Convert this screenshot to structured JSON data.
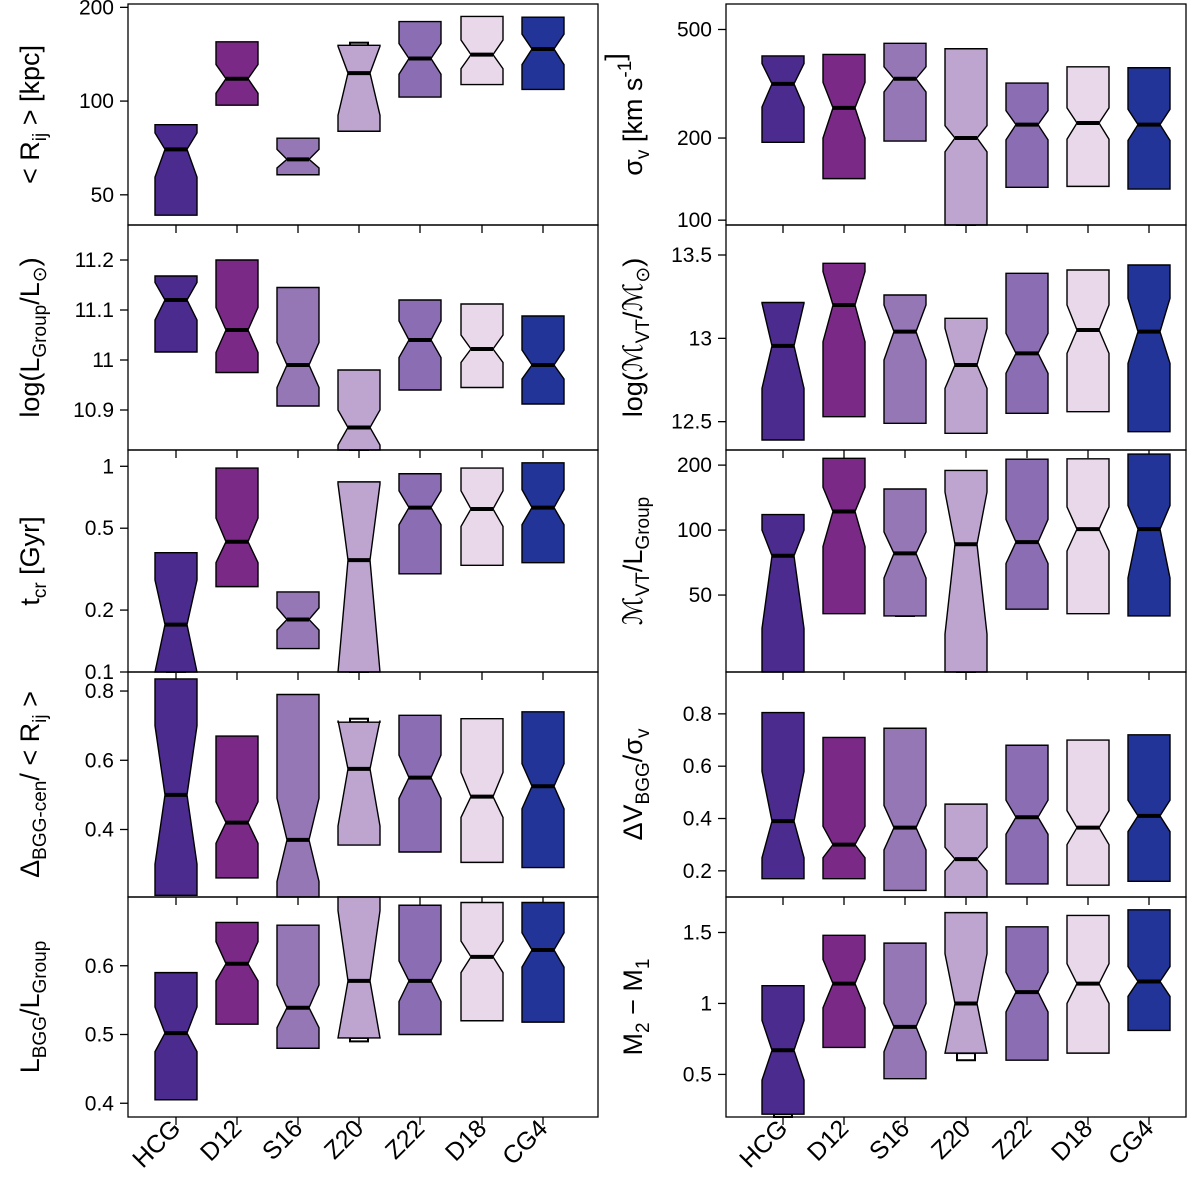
{
  "categories": [
    "HCG",
    "D12",
    "S16",
    "Z20",
    "Z22",
    "D18",
    "CG4"
  ],
  "colors": [
    "#4b2b8e",
    "#7a2a86",
    "#9677b6",
    "#bda5cf",
    "#8b6db3",
    "#e9d8ea",
    "#223497"
  ],
  "chart_data": [
    {
      "type": "notched-box",
      "panel": "left-1",
      "ylabel_parts": [
        "< R",
        "ij",
        " >  [kpc]"
      ],
      "scale": "log",
      "ylim": [
        40,
        205
      ],
      "ticks": [
        50,
        100,
        200
      ],
      "tick_labels": [
        "50",
        "100",
        "200"
      ],
      "boxes": [
        {
          "q1": 43,
          "med": 70,
          "q3": 84,
          "nlo": 57,
          "nhi": 79,
          "whisk": null
        },
        {
          "q1": 97,
          "med": 118,
          "q3": 155,
          "nlo": 106,
          "nhi": 131,
          "whisk": null
        },
        {
          "q1": 58,
          "med": 65,
          "q3": 76,
          "nlo": 61,
          "nhi": 70,
          "whisk": null
        },
        {
          "q1": 80,
          "med": 123,
          "q3": 151,
          "nlo": 90,
          "nhi": 150,
          "whisk": [
            151,
            154
          ]
        },
        {
          "q1": 103,
          "med": 137,
          "q3": 180,
          "nlo": 122,
          "nhi": 153,
          "whisk": null
        },
        {
          "q1": 113,
          "med": 141,
          "q3": 187,
          "nlo": 127,
          "nhi": 157,
          "whisk": null
        },
        {
          "q1": 109,
          "med": 147,
          "q3": 186,
          "nlo": 131,
          "nhi": 164,
          "whisk": null
        }
      ]
    },
    {
      "type": "notched-box",
      "panel": "left-2",
      "ylabel_parts": [
        "log(L",
        "Group",
        "/L",
        "⊙",
        ")"
      ],
      "scale": "linear",
      "ylim": [
        10.82,
        11.27
      ],
      "ticks": [
        10.9,
        11.0,
        11.1,
        11.2
      ],
      "tick_labels": [
        "10.9",
        "11",
        "11.1",
        "11.2"
      ],
      "boxes": [
        {
          "q1": 11.016,
          "med": 11.12,
          "q3": 11.168,
          "nlo": 11.08,
          "nhi": 11.155,
          "whisk": null
        },
        {
          "q1": 10.975,
          "med": 11.06,
          "q3": 11.2,
          "nlo": 11.015,
          "nhi": 11.105,
          "whisk": null
        },
        {
          "q1": 10.908,
          "med": 10.99,
          "q3": 11.145,
          "nlo": 10.945,
          "nhi": 11.035,
          "whisk": null
        },
        {
          "q1": 10.82,
          "med": 10.865,
          "q3": 10.98,
          "nlo": 10.83,
          "nhi": 10.9,
          "whisk": [
            10.82,
            10.855
          ]
        },
        {
          "q1": 10.94,
          "med": 11.04,
          "q3": 11.12,
          "nlo": 11.005,
          "nhi": 11.078,
          "whisk": null
        },
        {
          "q1": 10.945,
          "med": 11.022,
          "q3": 11.112,
          "nlo": 10.995,
          "nhi": 11.05,
          "whisk": null
        },
        {
          "q1": 10.912,
          "med": 10.99,
          "q3": 11.088,
          "nlo": 10.962,
          "nhi": 11.02,
          "whisk": null
        }
      ]
    },
    {
      "type": "notched-box",
      "panel": "left-3",
      "ylabel_parts": [
        "t",
        "cr",
        " [Gyr]"
      ],
      "scale": "log",
      "ylim": [
        0.1,
        1.2
      ],
      "ticks": [
        0.1,
        0.2,
        0.5,
        1.0
      ],
      "tick_labels": [
        "0.1",
        "0.2",
        "0.5",
        "1"
      ],
      "boxes": [
        {
          "q1": 0.1,
          "med": 0.17,
          "q3": 0.38,
          "nlo": 0.1,
          "nhi": 0.28,
          "whisk": [
            0.1,
            0.107
          ]
        },
        {
          "q1": 0.26,
          "med": 0.43,
          "q3": 0.98,
          "nlo": 0.34,
          "nhi": 0.56,
          "whisk": null
        },
        {
          "q1": 0.13,
          "med": 0.18,
          "q3": 0.245,
          "nlo": 0.16,
          "nhi": 0.205,
          "whisk": null
        },
        {
          "q1": 0.1,
          "med": 0.35,
          "q3": 0.84,
          "nlo": 0.1,
          "nhi": 0.82,
          "whisk": [
            0.1,
            0.22
          ]
        },
        {
          "q1": 0.3,
          "med": 0.63,
          "q3": 0.92,
          "nlo": 0.52,
          "nhi": 0.76,
          "whisk": null
        },
        {
          "q1": 0.33,
          "med": 0.62,
          "q3": 0.98,
          "nlo": 0.51,
          "nhi": 0.76,
          "whisk": null
        },
        {
          "q1": 0.34,
          "med": 0.63,
          "q3": 1.04,
          "nlo": 0.52,
          "nhi": 0.77,
          "whisk": null
        }
      ]
    },
    {
      "type": "notched-box",
      "panel": "left-4",
      "ylabel_parts": [
        "Δ",
        "BGG-cen",
        "/ < R",
        "ij",
        " >"
      ],
      "scale": "linear",
      "ylim": [
        0.205,
        0.855
      ],
      "ticks": [
        0.4,
        0.6,
        0.8
      ],
      "tick_labels": [
        "0.4",
        "0.6",
        "0.8"
      ],
      "boxes": [
        {
          "q1": 0.21,
          "med": 0.5,
          "q3": 0.835,
          "nlo": 0.3,
          "nhi": 0.7,
          "whisk": null
        },
        {
          "q1": 0.26,
          "med": 0.42,
          "q3": 0.67,
          "nlo": 0.36,
          "nhi": 0.48,
          "whisk": null
        },
        {
          "q1": 0.2,
          "med": 0.37,
          "q3": 0.79,
          "nlo": 0.25,
          "nhi": 0.49,
          "whisk": null
        },
        {
          "q1": 0.355,
          "med": 0.575,
          "q3": 0.71,
          "nlo": 0.41,
          "nhi": 0.715,
          "whisk": [
            0.71,
            0.72
          ]
        },
        {
          "q1": 0.335,
          "med": 0.55,
          "q3": 0.73,
          "nlo": 0.49,
          "nhi": 0.615,
          "whisk": null
        },
        {
          "q1": 0.305,
          "med": 0.495,
          "q3": 0.72,
          "nlo": 0.435,
          "nhi": 0.565,
          "whisk": null
        },
        {
          "q1": 0.29,
          "med": 0.525,
          "q3": 0.74,
          "nlo": 0.46,
          "nhi": 0.59,
          "whisk": null
        }
      ]
    },
    {
      "type": "notched-box",
      "panel": "left-5",
      "ylabel_parts": [
        "L",
        "BGG",
        "/L",
        "Group",
        ""
      ],
      "scale": "linear",
      "ylim": [
        0.38,
        0.7
      ],
      "ticks": [
        0.4,
        0.5,
        0.6
      ],
      "tick_labels": [
        "0.4",
        "0.5",
        "0.6"
      ],
      "boxes": [
        {
          "q1": 0.405,
          "med": 0.502,
          "q3": 0.59,
          "nlo": 0.475,
          "nhi": 0.54,
          "whisk": null
        },
        {
          "q1": 0.515,
          "med": 0.603,
          "q3": 0.663,
          "nlo": 0.578,
          "nhi": 0.635,
          "whisk": null
        },
        {
          "q1": 0.48,
          "med": 0.539,
          "q3": 0.659,
          "nlo": 0.51,
          "nhi": 0.572,
          "whisk": null
        },
        {
          "q1": 0.495,
          "med": 0.578,
          "q3": 0.7,
          "nlo": 0.495,
          "nhi": 0.68,
          "whisk": [
            0.49,
            0.495
          ]
        },
        {
          "q1": 0.5,
          "med": 0.578,
          "q3": 0.688,
          "nlo": 0.548,
          "nhi": 0.607,
          "whisk": null
        },
        {
          "q1": 0.52,
          "med": 0.613,
          "q3": 0.692,
          "nlo": 0.59,
          "nhi": 0.636,
          "whisk": null
        },
        {
          "q1": 0.518,
          "med": 0.623,
          "q3": 0.692,
          "nlo": 0.598,
          "nhi": 0.648,
          "whisk": null
        }
      ]
    },
    {
      "type": "notched-box",
      "panel": "right-1",
      "ylabel_parts": [
        "σ",
        "v",
        " [km s",
        "-1",
        "]"
      ],
      "scale": "log",
      "ylim": [
        96,
        620
      ],
      "ticks": [
        100,
        200,
        500
      ],
      "tick_labels": [
        "100",
        "200",
        "500"
      ],
      "boxes": [
        {
          "q1": 193,
          "med": 316,
          "q3": 400,
          "nlo": 260,
          "nhi": 375,
          "whisk": null
        },
        {
          "q1": 142,
          "med": 258,
          "q3": 405,
          "nlo": 200,
          "nhi": 320,
          "whisk": null
        },
        {
          "q1": 195,
          "med": 330,
          "q3": 445,
          "nlo": 295,
          "nhi": 365,
          "whisk": null
        },
        {
          "q1": 96,
          "med": 200,
          "q3": 425,
          "nlo": 178,
          "nhi": 222,
          "whisk": [
            96,
            163
          ]
        },
        {
          "q1": 132,
          "med": 224,
          "q3": 318,
          "nlo": 197,
          "nhi": 252,
          "whisk": null
        },
        {
          "q1": 133,
          "med": 227,
          "q3": 365,
          "nlo": 198,
          "nhi": 258,
          "whisk": null
        },
        {
          "q1": 130,
          "med": 224,
          "q3": 362,
          "nlo": 196,
          "nhi": 255,
          "whisk": null
        }
      ]
    },
    {
      "type": "notched-box",
      "panel": "right-2",
      "ylabel_parts": [
        "log(",
        "ℳ",
        "VT",
        "/",
        "ℳ",
        "⊙",
        ")"
      ],
      "scale": "linear",
      "ylim": [
        12.33,
        13.68
      ],
      "ticks": [
        12.5,
        13.0,
        13.5
      ],
      "tick_labels": [
        "12.5",
        "13",
        "13.5"
      ],
      "boxes": [
        {
          "q1": 12.39,
          "med": 12.955,
          "q3": 13.215,
          "nlo": 12.7,
          "nhi": 13.21,
          "whisk": null
        },
        {
          "q1": 12.53,
          "med": 13.2,
          "q3": 13.45,
          "nlo": 12.98,
          "nhi": 13.4,
          "whisk": null
        },
        {
          "q1": 12.49,
          "med": 13.04,
          "q3": 13.26,
          "nlo": 12.87,
          "nhi": 13.2,
          "whisk": null
        },
        {
          "q1": 12.43,
          "med": 12.84,
          "q3": 13.12,
          "nlo": 12.7,
          "nhi": 13.06,
          "whisk": null
        },
        {
          "q1": 12.55,
          "med": 12.91,
          "q3": 13.39,
          "nlo": 12.79,
          "nhi": 13.03,
          "whisk": null
        },
        {
          "q1": 12.56,
          "med": 13.05,
          "q3": 13.41,
          "nlo": 12.91,
          "nhi": 13.2,
          "whisk": null
        },
        {
          "q1": 12.44,
          "med": 13.04,
          "q3": 13.44,
          "nlo": 12.85,
          "nhi": 13.24,
          "whisk": null
        }
      ]
    },
    {
      "type": "notched-box",
      "panel": "right-3",
      "ylabel_parts": [
        "ℳ",
        "VT",
        "/L",
        "Group",
        ""
      ],
      "scale": "log",
      "ylim": [
        22,
        235
      ],
      "ticks": [
        50,
        100,
        200
      ],
      "tick_labels": [
        "50",
        "100",
        "200"
      ],
      "boxes": [
        {
          "q1": 22,
          "med": 76,
          "q3": 118,
          "nlo": 35,
          "nhi": 100,
          "whisk": null
        },
        {
          "q1": 41,
          "med": 122,
          "q3": 215,
          "nlo": 84,
          "nhi": 158,
          "whisk": null
        },
        {
          "q1": 40,
          "med": 78,
          "q3": 155,
          "nlo": 60,
          "nhi": 98,
          "whisk": [
            40,
            41
          ]
        },
        {
          "q1": 22,
          "med": 86,
          "q3": 189,
          "nlo": 33,
          "nhi": 150,
          "whisk": [
            22,
            33
          ]
        },
        {
          "q1": 43,
          "med": 88,
          "q3": 213,
          "nlo": 70,
          "nhi": 112,
          "whisk": null
        },
        {
          "q1": 41,
          "med": 101,
          "q3": 214,
          "nlo": 80,
          "nhi": 128,
          "whisk": null
        },
        {
          "q1": 40,
          "med": 101,
          "q3": 225,
          "nlo": 60,
          "nhi": 130,
          "whisk": null
        }
      ]
    },
    {
      "type": "notched-box",
      "panel": "right-4",
      "ylabel_parts": [
        "ΔV",
        "BGG",
        "/σ",
        "v",
        ""
      ],
      "scale": "linear",
      "ylim": [
        0.1,
        0.96
      ],
      "ticks": [
        0.2,
        0.4,
        0.6,
        0.8
      ],
      "tick_labels": [
        "0.2",
        "0.4",
        "0.6",
        "0.8"
      ],
      "boxes": [
        {
          "q1": 0.17,
          "med": 0.39,
          "q3": 0.805,
          "nlo": 0.25,
          "nhi": 0.58,
          "whisk": null
        },
        {
          "q1": 0.17,
          "med": 0.3,
          "q3": 0.71,
          "nlo": 0.25,
          "nhi": 0.37,
          "whisk": null
        },
        {
          "q1": 0.125,
          "med": 0.365,
          "q3": 0.745,
          "nlo": 0.28,
          "nhi": 0.45,
          "whisk": null
        },
        {
          "q1": 0.1,
          "med": 0.245,
          "q3": 0.455,
          "nlo": 0.2,
          "nhi": 0.29,
          "whisk": null
        },
        {
          "q1": 0.15,
          "med": 0.405,
          "q3": 0.68,
          "nlo": 0.34,
          "nhi": 0.47,
          "whisk": null
        },
        {
          "q1": 0.145,
          "med": 0.365,
          "q3": 0.7,
          "nlo": 0.3,
          "nhi": 0.43,
          "whisk": null
        },
        {
          "q1": 0.16,
          "med": 0.41,
          "q3": 0.72,
          "nlo": 0.35,
          "nhi": 0.47,
          "whisk": null
        }
      ]
    },
    {
      "type": "notched-box",
      "panel": "right-5",
      "ylabel_parts": [
        "M",
        "2",
        " − M",
        "1",
        ""
      ],
      "scale": "linear",
      "ylim": [
        0.2,
        1.75
      ],
      "ticks": [
        0.5,
        1.0,
        1.5
      ],
      "tick_labels": [
        "0.5",
        "1",
        "1.5"
      ],
      "boxes": [
        {
          "q1": 0.22,
          "med": 0.67,
          "q3": 1.125,
          "nlo": 0.46,
          "nhi": 0.88,
          "whisk": [
            0.2,
            0.22
          ]
        },
        {
          "q1": 0.69,
          "med": 1.14,
          "q3": 1.48,
          "nlo": 0.97,
          "nhi": 1.31,
          "whisk": null
        },
        {
          "q1": 0.47,
          "med": 0.835,
          "q3": 1.425,
          "nlo": 0.66,
          "nhi": 1.0,
          "whisk": null
        },
        {
          "q1": 0.65,
          "med": 1.0,
          "q3": 1.64,
          "nlo": 0.65,
          "nhi": 1.35,
          "whisk": [
            0.6,
            0.65
          ]
        },
        {
          "q1": 0.6,
          "med": 1.08,
          "q3": 1.54,
          "nlo": 0.94,
          "nhi": 1.22,
          "whisk": null
        },
        {
          "q1": 0.65,
          "med": 1.14,
          "q3": 1.62,
          "nlo": 1.0,
          "nhi": 1.28,
          "whisk": null
        },
        {
          "q1": 0.81,
          "med": 1.155,
          "q3": 1.66,
          "nlo": 1.05,
          "nhi": 1.26,
          "whisk": null
        }
      ]
    }
  ]
}
